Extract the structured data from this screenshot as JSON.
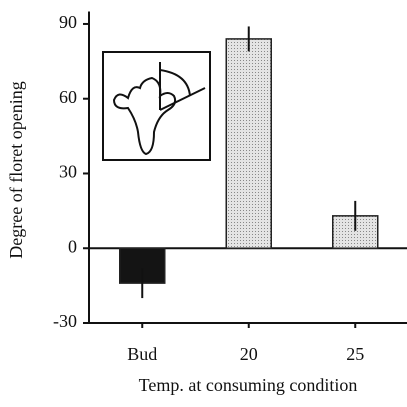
{
  "chart_data": {
    "type": "bar",
    "x_label": "Temp. at consuming condition",
    "y_label": "Degree of floret opening",
    "categories": [
      "Bud",
      "20",
      "25"
    ],
    "values": [
      -14,
      84,
      13
    ],
    "errors": [
      6,
      5,
      6
    ],
    "colors": [
      "#141414",
      "#d4d4d4",
      "#dcdcdc"
    ],
    "ylim": [
      -30,
      95
    ],
    "yticks": [
      -30,
      0,
      30,
      60,
      90
    ]
  }
}
